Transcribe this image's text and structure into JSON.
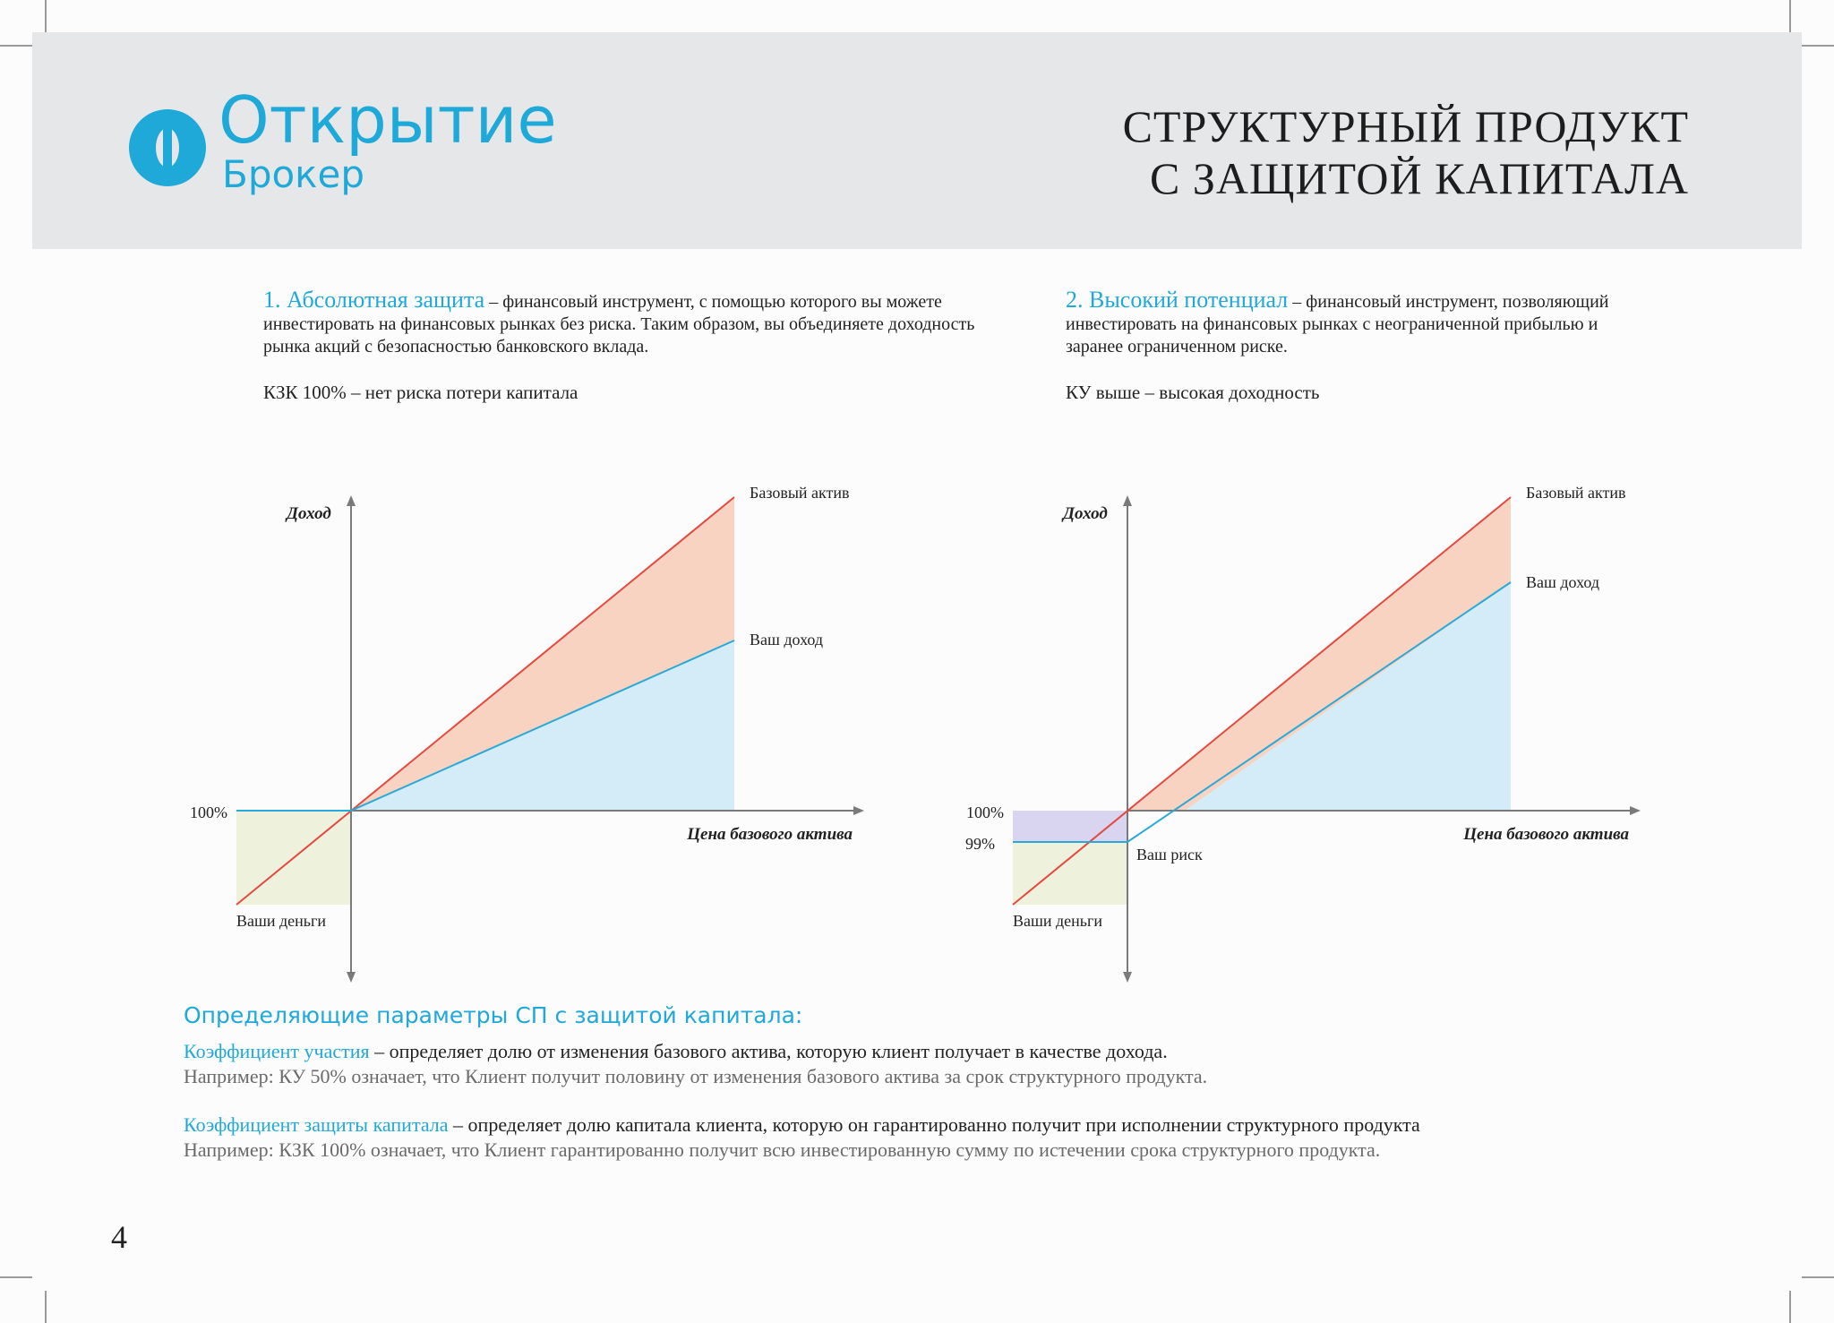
{
  "header": {
    "logo_name": "Открытие",
    "logo_sub": "Брокер",
    "title_line1": "СТРУКТУРНЫЙ ПРОДУКТ",
    "title_line2": "С ЗАЩИТОЙ КАПИТАЛА"
  },
  "intro": {
    "left": {
      "term": "1. Абсолютная защита",
      "text": " – финансовый инструмент, с помощью которого вы можете инвестировать на финансовых рынках без риска. Таким образом, вы объединяете доходность рынка акций с безопасностью банковского вклада.",
      "note": "КЗК 100% – нет риска потери капитала"
    },
    "right": {
      "term": "2. Высокий потенциал",
      "text": " – финансовый инструмент, позволяющий инвестировать на финансовых рынках с неограниченной прибылью и заранее ограниченном риске.",
      "note": "КУ выше – высокая доходность"
    }
  },
  "chart_data": [
    {
      "type": "line",
      "ylabel": "Доход",
      "xlabel": "Цена базового актива",
      "tick_labels": [
        "100%"
      ],
      "series": [
        {
          "name": "Базовый актив",
          "color": "#e4493f"
        },
        {
          "name": "Ваш доход",
          "color": "#29a9d8"
        }
      ],
      "labels": {
        "your_money": "Ваши деньги"
      },
      "x": [
        -1,
        0,
        1
      ],
      "base_asset": [
        -0.25,
        0,
        0.83
      ],
      "your_income": [
        0,
        0,
        0.45
      ]
    },
    {
      "type": "line",
      "ylabel": "Доход",
      "xlabel": "Цена базового актива",
      "tick_labels": [
        "100%",
        "99%"
      ],
      "series": [
        {
          "name": "Базовый актив",
          "color": "#e4493f"
        },
        {
          "name": "Ваш доход",
          "color": "#29a9d8"
        }
      ],
      "labels": {
        "your_risk": "Ваш риск",
        "your_money": "Ваши деньги"
      },
      "x": [
        -1,
        0,
        0.12,
        1
      ],
      "base_asset": [
        -0.25,
        0,
        0.1,
        0.83
      ],
      "your_income": [
        -0.08,
        -0.08,
        0,
        0.61
      ]
    }
  ],
  "params": {
    "heading": "Определяющие параметры СП с защитой капитала:",
    "items": [
      {
        "term": "Коэффициент участия",
        "text": " – определяет долю от изменения базового актива, которую клиент получает в качестве дохода.",
        "example": "Например: КУ 50% означает, что Клиент получит половину от изменения базового актива за срок структурного продукта."
      },
      {
        "term": "Коэффициент защиты капитала",
        "text": " – определяет долю капитала клиента, которую он гарантированно получит при исполнении структурного продукта",
        "example": "Например: КЗК 100% означает, что Клиент гарантированно получит всю инвестированную сумму по истечении срока структурного продукта."
      }
    ]
  },
  "page_number": "4"
}
